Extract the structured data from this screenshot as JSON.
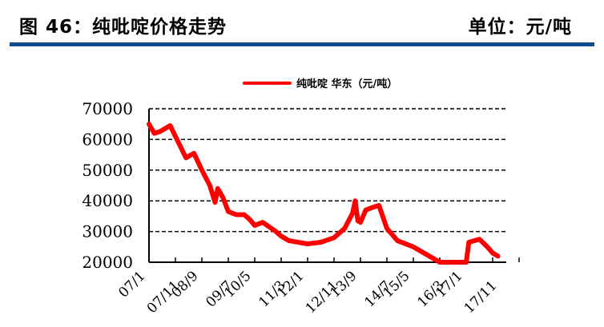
{
  "header": {
    "title": "图 46：纯吡啶价格走势",
    "unit": "单位：元/吨",
    "rule_color": "#0e4d8a"
  },
  "chart_data": {
    "type": "line",
    "title": "",
    "xlabel": "",
    "ylabel": "",
    "ylim": [
      20000,
      70000
    ],
    "yticks": [
      70000,
      60000,
      50000,
      40000,
      30000,
      20000
    ],
    "grid": "horizontal dashed",
    "legend_position": "top-center",
    "categories": [
      "07/1",
      "07/11",
      "08/9",
      "09/7",
      "10/5",
      "11/3",
      "12/1",
      "12/11",
      "13/9",
      "14/7",
      "15/5",
      "16/3",
      "17/1",
      "17/11"
    ],
    "series": [
      {
        "name": "纯吡啶 华东（元/吨）",
        "color": "#ff0000",
        "points": [
          [
            "07/1",
            65000
          ],
          [
            "07/3",
            62000
          ],
          [
            "07/5",
            62500
          ],
          [
            "07/9",
            64500
          ],
          [
            "07/11",
            61000
          ],
          [
            "08/3",
            54000
          ],
          [
            "08/6",
            55500
          ],
          [
            "08/9",
            50000
          ],
          [
            "08/12",
            45000
          ],
          [
            "09/2",
            39500
          ],
          [
            "09/3",
            44000
          ],
          [
            "09/5",
            41000
          ],
          [
            "09/7",
            36500
          ],
          [
            "09/10",
            35500
          ],
          [
            "10/1",
            35500
          ],
          [
            "10/3",
            34000
          ],
          [
            "10/5",
            32000
          ],
          [
            "10/8",
            33000
          ],
          [
            "11/1",
            30000
          ],
          [
            "11/3",
            28500
          ],
          [
            "11/6",
            27000
          ],
          [
            "12/1",
            26000
          ],
          [
            "12/6",
            26500
          ],
          [
            "12/11",
            28000
          ],
          [
            "13/3",
            31000
          ],
          [
            "13/6",
            36000
          ],
          [
            "13/7",
            40000
          ],
          [
            "13/8",
            33500
          ],
          [
            "13/9",
            33000
          ],
          [
            "13/11",
            37000
          ],
          [
            "14/2",
            38000
          ],
          [
            "14/4",
            38500
          ],
          [
            "14/7",
            31000
          ],
          [
            "14/11",
            27000
          ],
          [
            "15/5",
            25000
          ],
          [
            "15/10",
            22500
          ],
          [
            "16/3",
            20000
          ],
          [
            "17/1",
            20000
          ],
          [
            "17/2",
            26500
          ],
          [
            "17/6",
            27500
          ],
          [
            "17/9",
            25000
          ],
          [
            "17/11",
            23000
          ],
          [
            "18/1",
            22000
          ]
        ]
      }
    ]
  }
}
